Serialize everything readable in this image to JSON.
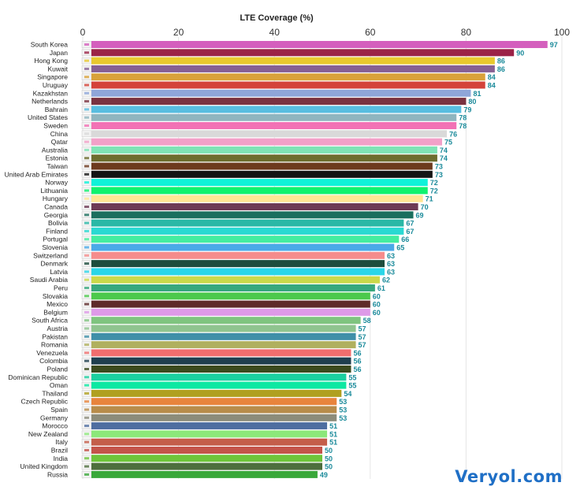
{
  "chart_data": {
    "type": "bar",
    "orientation": "horizontal",
    "title": "LTE Coverage (%)",
    "xlabel": "",
    "ylabel": "",
    "xlim": [
      0,
      100
    ],
    "ticks": [
      "0",
      "20",
      "40",
      "60",
      "80",
      "100"
    ],
    "grid": true,
    "legend": "none",
    "categories": [
      "South Korea",
      "Japan",
      "Hong Kong",
      "Kuwait",
      "Singapore",
      "Uruguay",
      "Kazakhstan",
      "Netherlands",
      "Bahrain",
      "United States",
      "Sweden",
      "China",
      "Qatar",
      "Australia",
      "Estonia",
      "Taiwan",
      "United Arab Emirates",
      "Norway",
      "Lithuania",
      "Hungary",
      "Canada",
      "Georgia",
      "Bolivia",
      "Finland",
      "Portugal",
      "Slovenia",
      "Switzerland",
      "Denmark",
      "Latvia",
      "Saudi Arabia",
      "Peru",
      "Slovakia",
      "Mexico",
      "Belgium",
      "South Africa",
      "Austria",
      "Pakistan",
      "Romania",
      "Venezuela",
      "Colombia",
      "Poland",
      "Dominican Republic",
      "Oman",
      "Thailand",
      "Czech Republic",
      "Spain",
      "Germany",
      "Morocco",
      "New Zealand",
      "Italy",
      "Brazil",
      "India",
      "United Kingdom",
      "Russia"
    ],
    "values": [
      97,
      90,
      86,
      86,
      84,
      84,
      81,
      80,
      79,
      78,
      78,
      76,
      75,
      74,
      74,
      73,
      73,
      72,
      72,
      71,
      70,
      69,
      67,
      67,
      66,
      65,
      63,
      63,
      63,
      62,
      61,
      60,
      60,
      60,
      58,
      57,
      57,
      57,
      56,
      56,
      56,
      55,
      55,
      54,
      53,
      53,
      53,
      51,
      51,
      51,
      50,
      50,
      50,
      49
    ],
    "labels": [
      "97",
      "90",
      "86",
      "86",
      "84",
      "84",
      "81",
      "80",
      "79",
      "78",
      "78",
      "76",
      "75",
      "74",
      "74",
      "73",
      "73",
      "72",
      "72",
      "71",
      "70",
      "69",
      "67",
      "67",
      "66",
      "65",
      "63",
      "63",
      "63",
      "62",
      "61",
      "60",
      "60",
      "60",
      "58",
      "57",
      "57",
      "57",
      "56",
      "56",
      "56",
      "55",
      "55",
      "54",
      "53",
      "53",
      "53",
      "51",
      "51",
      "51",
      "50",
      "50",
      "50",
      "49"
    ],
    "colors": [
      "#d45fbd",
      "#9b2347",
      "#e8c92e",
      "#866093",
      "#d9a23a",
      "#d4433a",
      "#8fa6d9",
      "#7a3240",
      "#58bde0",
      "#8fb5bf",
      "#f272b5",
      "#d9d9d9",
      "#f2a0c8",
      "#7fe3b5",
      "#6d6d2f",
      "#6d3a1e",
      "#141414",
      "#0ff2d9",
      "#0ff26e",
      "#ffe694",
      "#6d3b55",
      "#1b6f5e",
      "#2ab8a6",
      "#2ad9d2",
      "#44eda0",
      "#4aa9e8",
      "#f58c8c",
      "#1d4d3d",
      "#2ad6e8",
      "#cbd94a",
      "#38a87d",
      "#4cc94c",
      "#5e2a2a",
      "#de9ae8",
      "#7fc47f",
      "#8fc48f",
      "#3f8fa8",
      "#b0b05e",
      "#f06e6e",
      "#1f3f4f",
      "#3b4a1e",
      "#1bd0a0",
      "#0de8a2",
      "#b0a020",
      "#e8843c",
      "#b88c4a",
      "#8c8c7a",
      "#4f6ea0",
      "#8ce87a",
      "#c45e4a",
      "#c4544a",
      "#6ec43a",
      "#4d6e3d",
      "#3aa83a"
    ],
    "value_label_color": "#1a8a9a"
  },
  "watermark": "Veryol.com"
}
